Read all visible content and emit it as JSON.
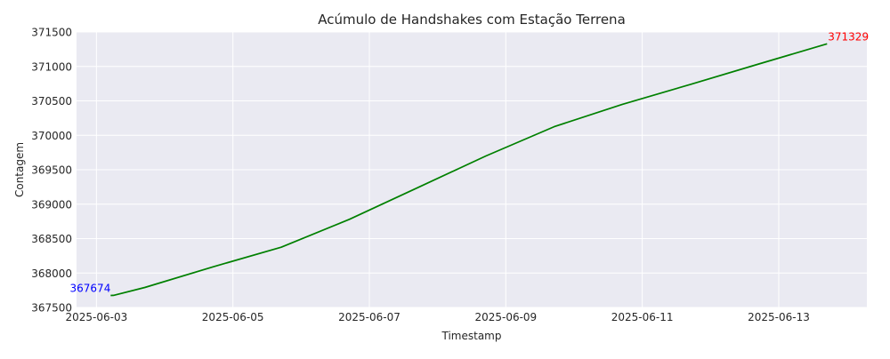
{
  "chart_data": {
    "type": "line",
    "title": "Acúmulo de Handshakes com Estação Terrena",
    "xlabel": "Timestamp",
    "ylabel": "Contagem",
    "ylim": [
      367500,
      371500
    ],
    "xlim": [
      "2025-06-02 17:00",
      "2025-06-14 07:00"
    ],
    "grid": true,
    "x_ticks": [
      "2025-06-03",
      "2025-06-05",
      "2025-06-07",
      "2025-06-09",
      "2025-06-11",
      "2025-06-13"
    ],
    "y_ticks": [
      367500,
      368000,
      368500,
      369000,
      369500,
      370000,
      370500,
      371000,
      371500
    ],
    "series": [
      {
        "color": "#008000",
        "points": [
          {
            "x": "2025-06-03 05:00",
            "y": 367674
          },
          {
            "x": "2025-06-03 06:00",
            "y": 367676
          },
          {
            "x": "2025-06-03 17:00",
            "y": 367790
          },
          {
            "x": "2025-06-04 17:00",
            "y": 368090
          },
          {
            "x": "2025-06-05 17:00",
            "y": 368375
          },
          {
            "x": "2025-06-06 17:00",
            "y": 368780
          },
          {
            "x": "2025-06-07 17:00",
            "y": 369240
          },
          {
            "x": "2025-06-08 17:00",
            "y": 369700
          },
          {
            "x": "2025-06-09 17:00",
            "y": 370125
          },
          {
            "x": "2025-06-10 17:00",
            "y": 370450
          },
          {
            "x": "2025-06-11 17:00",
            "y": 370740
          },
          {
            "x": "2025-06-12 17:00",
            "y": 371035
          },
          {
            "x": "2025-06-13 17:00",
            "y": 371329
          }
        ]
      }
    ],
    "annotations": [
      {
        "text": "367674",
        "color": "#0000ff",
        "at": "first"
      },
      {
        "text": "371329",
        "color": "#ff0000",
        "at": "last"
      }
    ],
    "colors": {
      "plot_background": "#eaeaf2",
      "grid": "#ffffff"
    }
  }
}
